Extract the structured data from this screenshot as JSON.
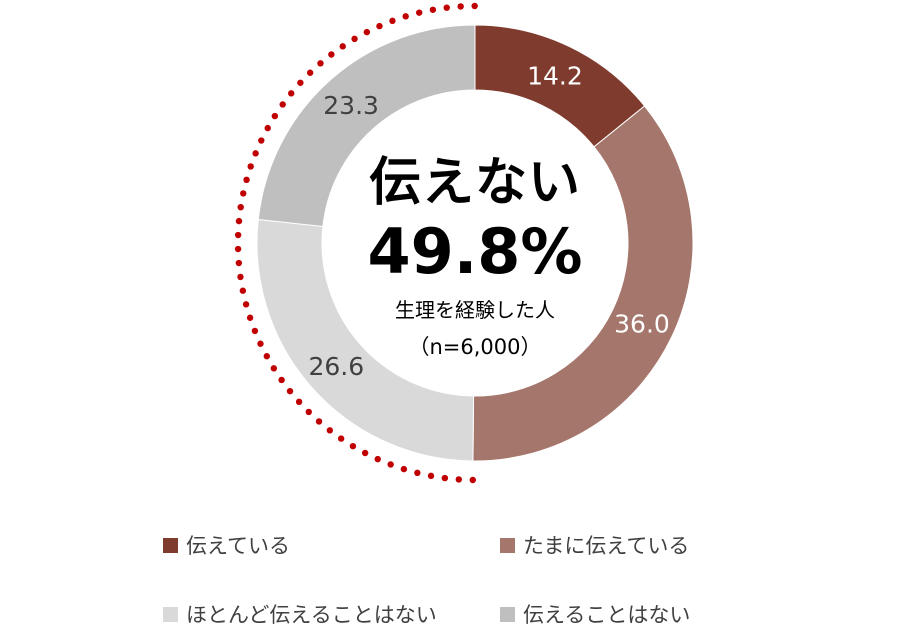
{
  "chart_data": {
    "type": "pie",
    "variant": "donut",
    "unit": "%",
    "center": {
      "title": "伝えない",
      "value": "49.8%",
      "subtitle": "生理を経験した人",
      "sample": "（n=6,000）"
    },
    "slices": [
      {
        "label": "伝えている",
        "value": 14.2,
        "display": "14.2",
        "color": "#7f3b2e",
        "label_color": "#ffffff"
      },
      {
        "label": "たまに伝えている",
        "value": 36.0,
        "display": "36.0",
        "color": "#a5766b",
        "label_color": "#ffffff"
      },
      {
        "label": "ほとんど伝えることはない",
        "value": 26.6,
        "display": "26.6",
        "color": "#d9d9d9",
        "label_color": "#404040"
      },
      {
        "label": "伝えることはない",
        "value": 23.3,
        "display": "23.3",
        "color": "#bfbfbf",
        "label_color": "#404040"
      }
    ],
    "highlight_arc": {
      "covers": [
        "ほとんど伝えることはない",
        "伝えることはない"
      ],
      "color": "#c00000",
      "style": "dotted"
    },
    "legend_position": "bottom"
  }
}
